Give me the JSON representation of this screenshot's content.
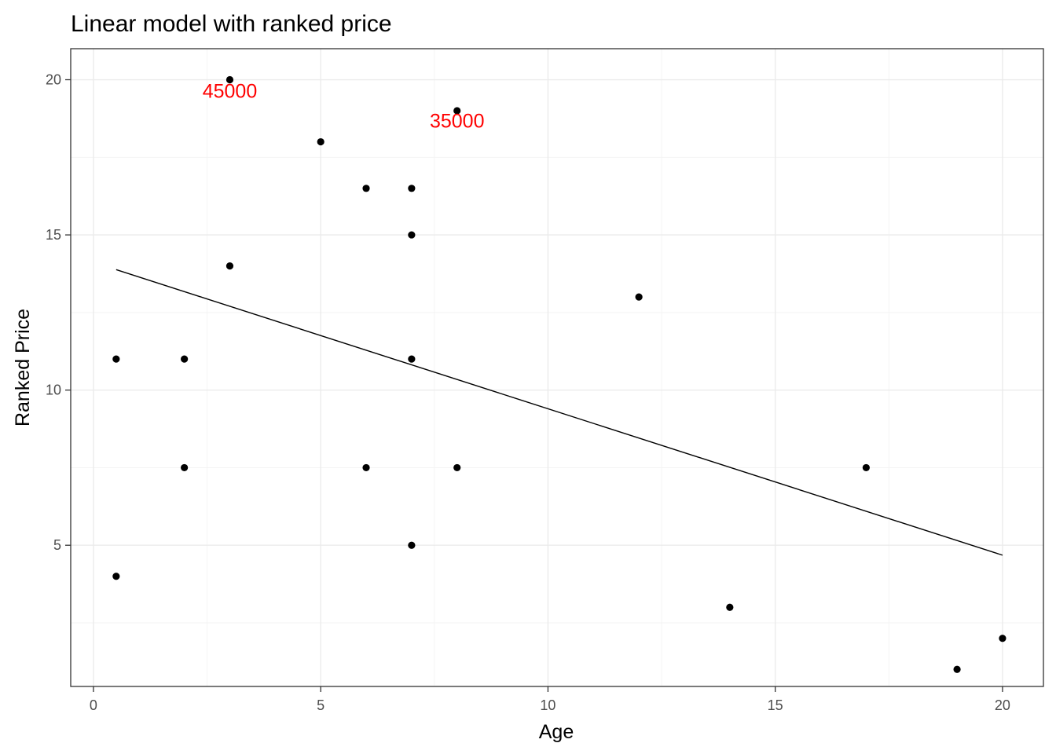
{
  "chart_data": {
    "type": "scatter",
    "title": "Linear model with ranked price",
    "xlabel": "Age",
    "ylabel": "Ranked Price",
    "xlim": [
      -0.5,
      20.9
    ],
    "ylim": [
      0.45,
      21.0
    ],
    "xticks": [
      0,
      5,
      10,
      15,
      20
    ],
    "yticks": [
      5,
      10,
      15,
      20
    ],
    "x_minor": [
      2.5,
      7.5,
      12.5,
      17.5
    ],
    "y_minor": [
      2.5,
      7.5,
      12.5,
      17.5
    ],
    "grid": true,
    "points": [
      {
        "x": 0.5,
        "y": 11
      },
      {
        "x": 0.5,
        "y": 4
      },
      {
        "x": 2,
        "y": 11
      },
      {
        "x": 2,
        "y": 7.5
      },
      {
        "x": 3,
        "y": 20
      },
      {
        "x": 3,
        "y": 14
      },
      {
        "x": 5,
        "y": 18
      },
      {
        "x": 6,
        "y": 16.5
      },
      {
        "x": 6,
        "y": 7.5
      },
      {
        "x": 7,
        "y": 16.5
      },
      {
        "x": 7,
        "y": 15
      },
      {
        "x": 7,
        "y": 11
      },
      {
        "x": 7,
        "y": 5
      },
      {
        "x": 8,
        "y": 19
      },
      {
        "x": 8,
        "y": 7.5
      },
      {
        "x": 12,
        "y": 13
      },
      {
        "x": 14,
        "y": 3
      },
      {
        "x": 17,
        "y": 7.5
      },
      {
        "x": 19,
        "y": 1
      },
      {
        "x": 20,
        "y": 2
      }
    ],
    "fit_line": {
      "x": [
        0.5,
        20
      ],
      "y": [
        13.88,
        4.68
      ]
    },
    "annotations": [
      {
        "text": "45000",
        "x": 3,
        "y": 19.65,
        "color": "#ff0000"
      },
      {
        "text": "35000",
        "x": 8,
        "y": 18.68,
        "color": "#ff0000"
      }
    ]
  }
}
